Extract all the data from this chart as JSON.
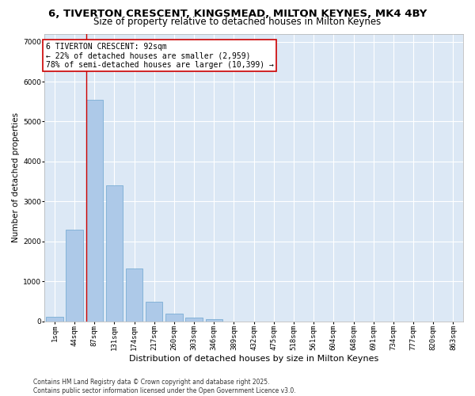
{
  "title1": "6, TIVERTON CRESCENT, KINGSMEAD, MILTON KEYNES, MK4 4BY",
  "title2": "Size of property relative to detached houses in Milton Keynes",
  "xlabel": "Distribution of detached houses by size in Milton Keynes",
  "ylabel": "Number of detached properties",
  "categories": [
    "1sqm",
    "44sqm",
    "87sqm",
    "131sqm",
    "174sqm",
    "217sqm",
    "260sqm",
    "303sqm",
    "346sqm",
    "389sqm",
    "432sqm",
    "475sqm",
    "518sqm",
    "561sqm",
    "604sqm",
    "648sqm",
    "691sqm",
    "734sqm",
    "777sqm",
    "820sqm",
    "863sqm"
  ],
  "values": [
    100,
    2300,
    5550,
    3400,
    1320,
    490,
    190,
    90,
    50,
    0,
    0,
    0,
    0,
    0,
    0,
    0,
    0,
    0,
    0,
    0,
    0
  ],
  "bar_color": "#adc9e8",
  "bar_edge_color": "#7aadd4",
  "vline_color": "#cc0000",
  "vline_x_idx": 2,
  "annotation_text": "6 TIVERTON CRESCENT: 92sqm\n← 22% of detached houses are smaller (2,959)\n78% of semi-detached houses are larger (10,399) →",
  "annotation_box_color": "#cc0000",
  "annotation_bg": "#ffffff",
  "ylim": [
    0,
    7200
  ],
  "yticks": [
    0,
    1000,
    2000,
    3000,
    4000,
    5000,
    6000,
    7000
  ],
  "background_color": "#dce8f5",
  "grid_color": "#ffffff",
  "footer": "Contains HM Land Registry data © Crown copyright and database right 2025.\nContains public sector information licensed under the Open Government Licence v3.0.",
  "title1_fontsize": 9.5,
  "title2_fontsize": 8.5,
  "xlabel_fontsize": 8,
  "ylabel_fontsize": 7.5,
  "tick_fontsize": 6.5,
  "annotation_fontsize": 7,
  "footer_fontsize": 5.5
}
